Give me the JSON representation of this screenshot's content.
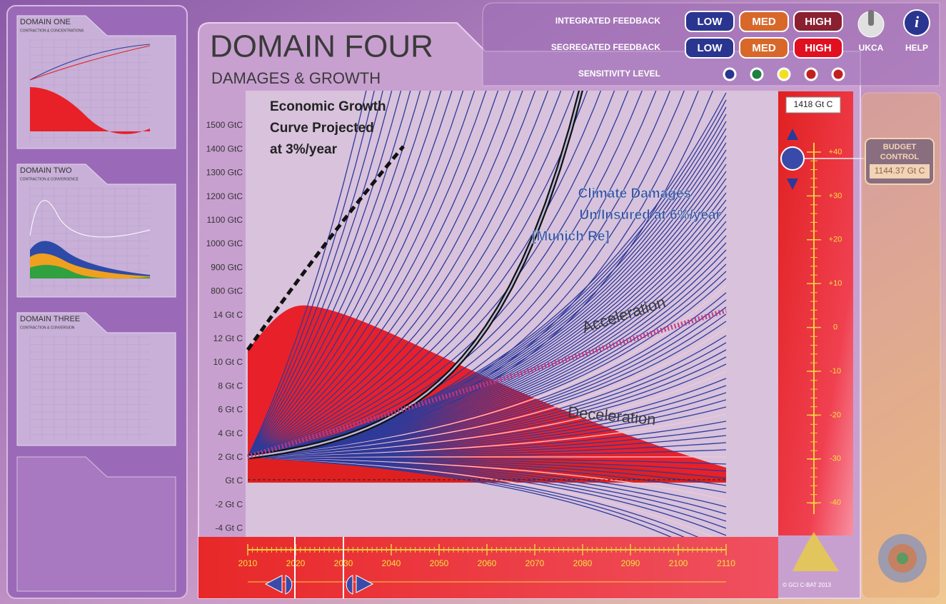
{
  "sidebar": {
    "panels": [
      {
        "title": "DOMAIN ONE",
        "subtitle": "CONTRACTION & CONCENTRATIONS"
      },
      {
        "title": "DOMAIN TWO",
        "subtitle": "CONTRACTION & CONVERGENCE"
      },
      {
        "title": "DOMAIN THREE",
        "subtitle": "CONTRACTION & CONVERSION"
      }
    ]
  },
  "header": {
    "title": "DOMAIN FOUR",
    "subtitle": "DAMAGES & GROWTH"
  },
  "controls": {
    "rows": [
      {
        "label": "INTEGRATED FEEDBACK",
        "buttons": [
          "LOW",
          "MED",
          "HIGH"
        ]
      },
      {
        "label": "SEGREGATED FEEDBACK",
        "buttons": [
          "LOW",
          "MED",
          "HIGH"
        ]
      },
      {
        "label": "SENSITIVITY LEVEL"
      }
    ],
    "ukca": "UKCA",
    "help_icon": "i",
    "help": "HELP"
  },
  "chart": {
    "annotations": {
      "growth": [
        "Economic Growth",
        "Curve Projected",
        "at 3%/year"
      ],
      "damages": [
        "Climate Damages",
        "Un/Insured at  6%/year",
        "[Munich Re]"
      ],
      "acceleration": "Acceleration",
      "deceleration": "Deceleration"
    },
    "y_labels": [
      "1500 GtC",
      "1400 GtC",
      "1300 GtC",
      "1200 GtC",
      "1100 GtC",
      "1000 GtC",
      "900 GtC",
      "800 GtC",
      "14 Gt C",
      "12 Gt C",
      "10 Gt C",
      "8 Gt C",
      "6 Gt C",
      "4 Gt C",
      "2 Gt C",
      "Gt C",
      "-2 Gt C",
      "-4 Gt C"
    ],
    "x_labels": [
      2010,
      2020,
      2030,
      2040,
      2050,
      2060,
      2070,
      2080,
      2090,
      2100,
      2110
    ]
  },
  "budget": {
    "total": "1418 Gt C",
    "title": [
      "BUDGET",
      "CONTROL"
    ],
    "value": "1144.37 Gt C",
    "scale": [
      "+40",
      "+30",
      "+20",
      "+10",
      "0",
      "-10",
      "-20",
      "-30",
      "-40"
    ]
  },
  "footer": "© GCI C-BAT 2013"
}
